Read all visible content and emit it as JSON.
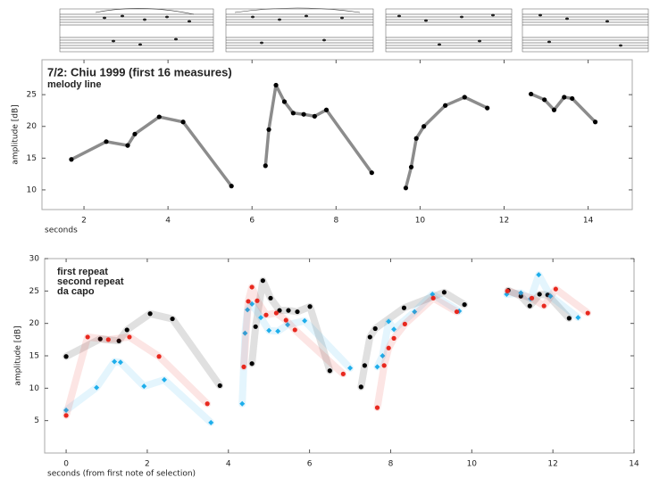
{
  "chart_data": [
    {
      "type": "line",
      "title": "7/2: Chiu 1999 (first 16 measures)",
      "subtitle": "melody line",
      "title_color": "#1a2fb0",
      "y_label": "amplitude [dB]",
      "x_label": "seconds",
      "xlim": [
        1,
        15.05
      ],
      "ylim": [
        6.9,
        30.5
      ],
      "xticks": [
        2,
        4,
        6,
        8,
        10,
        12,
        14
      ],
      "yticks": [
        10,
        15,
        20,
        25
      ],
      "color": "#000000",
      "line_color": "#8c8c8c",
      "x": [
        1.7,
        2.53,
        3.04,
        3.21,
        3.79,
        4.36,
        5.51,
        null,
        6.32,
        6.4,
        6.57,
        6.77,
        6.98,
        7.23,
        7.49,
        7.77,
        8.85,
        null,
        9.66,
        9.79,
        9.91,
        10.09,
        10.6,
        11.06,
        11.6,
        null,
        12.64,
        12.96,
        13.19,
        13.43,
        13.62,
        14.17
      ],
      "values": [
        14.8,
        17.6,
        17.0,
        18.8,
        21.5,
        20.7,
        10.6,
        null,
        13.8,
        19.5,
        26.5,
        23.9,
        22.1,
        21.9,
        21.6,
        22.6,
        12.7,
        null,
        10.3,
        13.6,
        18.1,
        20.0,
        23.3,
        24.6,
        22.9,
        null,
        25.1,
        24.2,
        22.6,
        24.6,
        24.4,
        20.7
      ]
    },
    {
      "type": "line",
      "y_label": "amplitude [dB]",
      "x_label": "seconds (from first note of selection)",
      "xlim": [
        -0.53,
        14.0
      ],
      "ylim": [
        0,
        30
      ],
      "xticks": [
        0,
        2,
        4,
        6,
        8,
        10,
        12,
        14
      ],
      "yticks": [
        5,
        10,
        15,
        20,
        25,
        30
      ],
      "legend": "upper left",
      "line_alpha": 0.12,
      "series": [
        {
          "name": "first repeat",
          "color": "#000000",
          "marker": "circle",
          "x": [
            0,
            0.84,
            1.3,
            1.5,
            2.07,
            2.62,
            3.79,
            null,
            4.58,
            4.67,
            4.85,
            5.04,
            5.26,
            5.48,
            5.7,
            6.01,
            6.5,
            null,
            7.27,
            7.36,
            7.49,
            7.62,
            8.33,
            9.32,
            9.82,
            null,
            10.9,
            11.21,
            11.43,
            11.67,
            11.87,
            12.4
          ],
          "values": [
            14.9,
            17.6,
            17.3,
            19.0,
            21.5,
            20.7,
            10.4,
            null,
            13.8,
            19.5,
            26.6,
            23.9,
            22.0,
            22.0,
            21.8,
            22.6,
            12.7,
            null,
            10.2,
            13.5,
            17.9,
            19.2,
            22.4,
            24.8,
            22.9,
            null,
            25.1,
            24.2,
            22.7,
            24.5,
            24.4,
            20.8
          ]
        },
        {
          "name": "second repeat",
          "color": "#1eaeeb",
          "marker": "diamond",
          "x": [
            0,
            0.75,
            1.19,
            1.34,
            1.92,
            2.42,
            3.57,
            null,
            4.34,
            4.41,
            4.47,
            4.58,
            4.8,
            5.0,
            5.22,
            5.46,
            5.88,
            7.0,
            null,
            7.67,
            7.8,
            7.95,
            8.08,
            8.59,
            9.03,
            9.69,
            null,
            10.86,
            11.21,
            11.45,
            11.65,
            11.94,
            12.62
          ],
          "values": [
            6.6,
            10.1,
            14.1,
            14.0,
            10.3,
            11.3,
            4.7,
            null,
            7.6,
            18.5,
            22.1,
            23.0,
            20.9,
            18.9,
            18.8,
            19.8,
            20.4,
            13.1,
            null,
            13.3,
            15.0,
            20.3,
            19.1,
            21.8,
            24.5,
            21.9,
            null,
            24.5,
            24.7,
            23.8,
            27.5,
            24.2,
            20.9
          ]
        },
        {
          "name": "da capo",
          "color": "#e8281e",
          "marker": "circle",
          "x": [
            0,
            0.53,
            1.04,
            1.56,
            2.29,
            3.48,
            null,
            4.38,
            4.49,
            4.58,
            4.71,
            4.93,
            5.18,
            5.42,
            5.64,
            6.83,
            null,
            7.67,
            7.84,
            7.95,
            8.08,
            8.35,
            9.05,
            9.63,
            null,
            10.88,
            11.48,
            11.78,
            12.07,
            12.86
          ],
          "values": [
            5.8,
            17.9,
            17.5,
            17.9,
            14.9,
            7.6,
            null,
            13.3,
            23.4,
            25.6,
            23.5,
            21.3,
            21.6,
            20.5,
            19.0,
            12.2,
            null,
            7.0,
            13.5,
            16.2,
            17.7,
            19.9,
            23.9,
            21.8,
            null,
            25.0,
            23.9,
            22.7,
            25.3,
            21.6
          ]
        }
      ]
    }
  ]
}
